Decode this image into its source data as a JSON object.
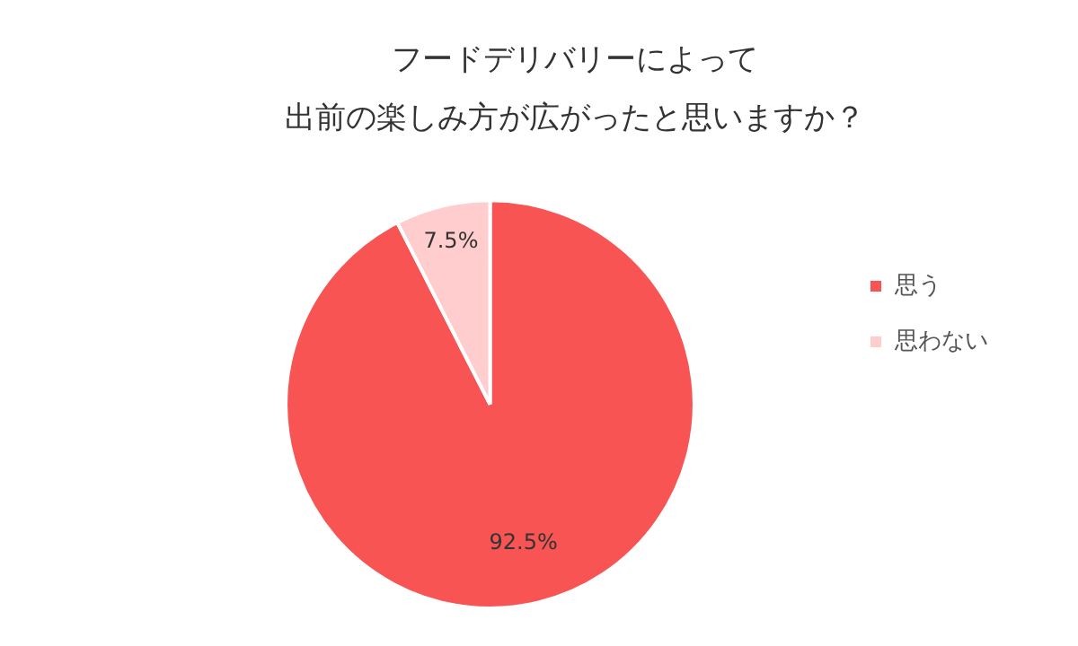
{
  "chart_data": {
    "type": "pie",
    "title": "フードデリバリーによって出前の楽しみ方が広がったと思いますか？",
    "categories": [
      "思う",
      "思わない"
    ],
    "values": [
      92.5,
      7.5
    ],
    "value_labels": [
      "92.5%",
      "7.5%"
    ],
    "colors": [
      "#f85454",
      "#ffcdcd"
    ],
    "legend": "right"
  }
}
